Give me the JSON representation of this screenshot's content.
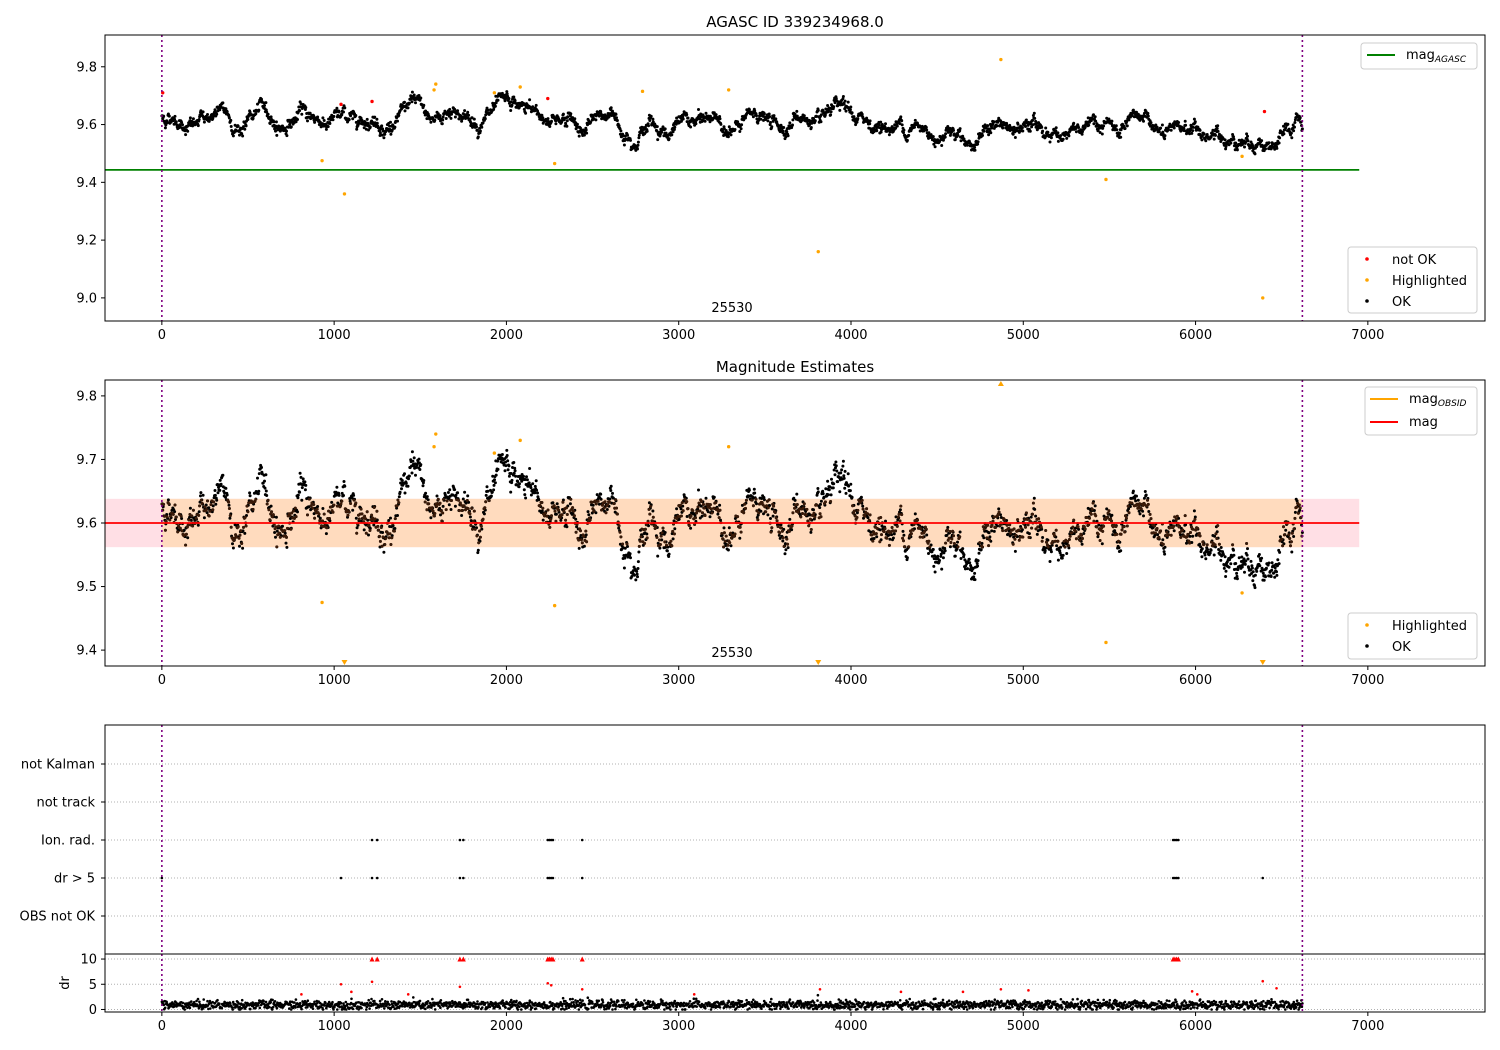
{
  "figure": {
    "title_top": "AGASC ID 339234968.0",
    "title_mid": "Magnitude Estimates",
    "obsid_label": "25530"
  },
  "colors": {
    "ok": "#000000",
    "not_ok": "#ff0000",
    "highlighted": "#ffa500",
    "agasc_line": "#008000",
    "mag_line": "#ff0000",
    "obsid_line": "#ffa500",
    "band_outer": "#ffc0cb",
    "band_inner": "#ffdab9",
    "boundary": "#800080",
    "brown": "#3b1a08"
  },
  "chart_data": [
    {
      "type": "scatter",
      "title": "AGASC ID 339234968.0",
      "xlim": [
        -330,
        7680
      ],
      "ylim": [
        8.92,
        9.91
      ],
      "xticks": [
        0,
        1000,
        2000,
        3000,
        4000,
        5000,
        6000,
        7000
      ],
      "yticks": [
        9.0,
        9.2,
        9.4,
        9.6,
        9.8
      ],
      "hlines": [
        {
          "name": "mag",
          "sub": "AGASC",
          "y": 9.443,
          "x": [
            -330,
            6950
          ]
        }
      ],
      "vlines": [
        0,
        6620
      ],
      "legend_top": [
        {
          "label": "mag",
          "sub": "AGASC"
        }
      ],
      "legend_bottom": [
        "not OK",
        "Highlighted",
        "OK"
      ],
      "ok_trend": [
        [
          0,
          9.625
        ],
        [
          500,
          9.615
        ],
        [
          1000,
          9.625
        ],
        [
          1500,
          9.635
        ],
        [
          2000,
          9.63
        ],
        [
          2500,
          9.61
        ],
        [
          3000,
          9.6
        ],
        [
          3500,
          9.61
        ],
        [
          4000,
          9.6
        ],
        [
          4500,
          9.585
        ],
        [
          5000,
          9.575
        ],
        [
          5500,
          9.575
        ],
        [
          6000,
          9.56
        ],
        [
          6620,
          9.55
        ]
      ],
      "highlighted_points": [
        [
          930,
          9.475
        ],
        [
          1060,
          9.36
        ],
        [
          1580,
          9.72
        ],
        [
          1590,
          9.74
        ],
        [
          1930,
          9.71
        ],
        [
          2080,
          9.73
        ],
        [
          2280,
          9.465
        ],
        [
          2790,
          9.715
        ],
        [
          3290,
          9.72
        ],
        [
          3810,
          9.16
        ],
        [
          4870,
          9.825
        ],
        [
          5480,
          9.41
        ],
        [
          6270,
          9.49
        ],
        [
          6390,
          9.0
        ]
      ],
      "not_ok_points": [
        [
          5,
          9.71
        ],
        [
          1040,
          9.67
        ],
        [
          1220,
          9.68
        ],
        [
          2240,
          9.69
        ],
        [
          6400,
          9.645
        ]
      ]
    },
    {
      "type": "scatter",
      "title": "Magnitude Estimates",
      "xlim": [
        -330,
        7680
      ],
      "ylim": [
        9.375,
        9.825
      ],
      "xticks": [
        0,
        1000,
        2000,
        3000,
        4000,
        5000,
        6000,
        7000
      ],
      "yticks": [
        9.4,
        9.5,
        9.6,
        9.7,
        9.8
      ],
      "hlines": [
        {
          "name": "mag",
          "y": 9.6,
          "x": [
            -330,
            6950
          ]
        }
      ],
      "band_outer": [
        9.562,
        9.638
      ],
      "band_inner": [
        9.562,
        9.638
      ],
      "vlines": [
        0,
        6620
      ],
      "legend_top": [
        {
          "label": "mag",
          "sub": "OBSID"
        },
        {
          "label": "mag",
          "sub": ""
        }
      ],
      "legend_bottom": [
        "Highlighted",
        "OK"
      ],
      "highlighted_points": [
        [
          930,
          9.475
        ],
        [
          1060,
          9.38
        ],
        [
          1580,
          9.72
        ],
        [
          1590,
          9.74
        ],
        [
          1930,
          9.71
        ],
        [
          2080,
          9.73
        ],
        [
          2280,
          9.47
        ],
        [
          3290,
          9.72
        ],
        [
          3810,
          9.38
        ],
        [
          4870,
          9.82
        ],
        [
          5480,
          9.412
        ],
        [
          6270,
          9.49
        ],
        [
          6390,
          9.38
        ]
      ]
    },
    {
      "type": "scatter",
      "xlim": [
        -330,
        7680
      ],
      "xticks": [
        0,
        1000,
        2000,
        3000,
        4000,
        5000,
        6000,
        7000
      ],
      "categories": [
        "not Kalman",
        "not track",
        "Ion. rad.",
        "dr > 5",
        "OBS not OK"
      ],
      "ion_rad_times": [
        1220,
        1250,
        1730,
        1750,
        2240,
        2250,
        2260,
        2270,
        2440,
        5870,
        5880,
        5890,
        5900
      ],
      "dr5_times": [
        0,
        1040,
        1220,
        1250,
        1730,
        1750,
        2240,
        2250,
        2260,
        2270,
        2440,
        5870,
        5880,
        5890,
        5900,
        6390
      ],
      "vlines": [
        0,
        6620
      ]
    },
    {
      "type": "scatter",
      "ylabel": "dr",
      "xlim": [
        -330,
        7680
      ],
      "ylim": [
        -0.5,
        11
      ],
      "xticks": [
        0,
        1000,
        2000,
        3000,
        4000,
        5000,
        6000,
        7000
      ],
      "yticks": [
        0,
        5,
        10
      ],
      "dr_high_points": [
        [
          1040,
          5.0
        ],
        [
          1220,
          5.5
        ],
        [
          1730,
          4.5
        ],
        [
          2240,
          5.2
        ],
        [
          2260,
          4.8
        ],
        [
          2440,
          4.0
        ],
        [
          3820,
          4.0
        ],
        [
          4290,
          3.5
        ],
        [
          4870,
          4.0
        ],
        [
          5030,
          3.8
        ],
        [
          6010,
          3.0
        ],
        [
          6390,
          5.6
        ],
        [
          6470,
          4.2
        ],
        [
          810,
          3.0
        ],
        [
          1100,
          3.5
        ],
        [
          1430,
          3.0
        ],
        [
          3090,
          3.0
        ],
        [
          4650,
          3.5
        ],
        [
          5980,
          3.6
        ]
      ],
      "dr_capped_times": [
        1220,
        1250,
        1730,
        1750,
        2240,
        2250,
        2260,
        2270,
        2440,
        5870,
        5880,
        5890,
        5900
      ],
      "vlines": [
        0,
        6620
      ]
    }
  ]
}
